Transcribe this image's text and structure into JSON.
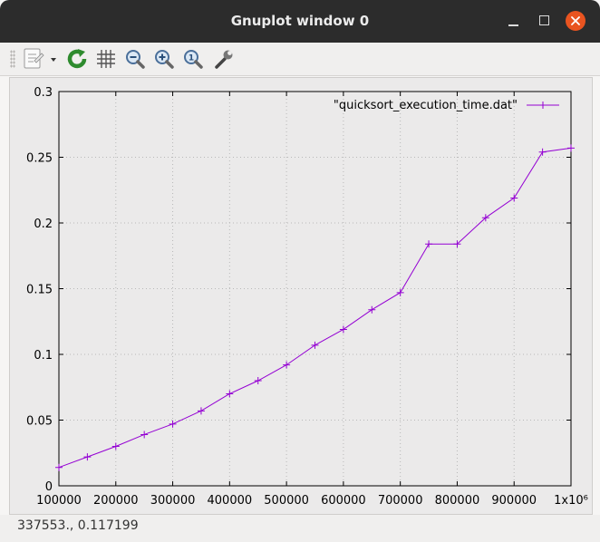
{
  "window": {
    "title": "Gnuplot window 0"
  },
  "toolbar": {
    "items": [
      {
        "name": "copy-menu",
        "icon": "clipboard-icon"
      },
      {
        "name": "replot",
        "icon": "refresh-icon"
      },
      {
        "name": "grid",
        "icon": "grid-icon"
      },
      {
        "name": "zoom-out",
        "icon": "zoom-out-icon"
      },
      {
        "name": "zoom-in",
        "icon": "zoom-in-icon"
      },
      {
        "name": "zoom-fit",
        "icon": "zoom-fit-icon"
      },
      {
        "name": "config",
        "icon": "wrench-icon"
      }
    ]
  },
  "status": {
    "coords": "337553., 0.117199"
  },
  "colors": {
    "series": "#9400d3",
    "close": "#e95420",
    "replot": "#2e8b2e"
  },
  "chart_data": {
    "type": "line",
    "title": "",
    "xlabel": "",
    "ylabel": "",
    "xlim": [
      100000,
      1000000
    ],
    "ylim": [
      0,
      0.3
    ],
    "grid": true,
    "legend_position": "top-right",
    "x_ticks": [
      "100000",
      "200000",
      "300000",
      "400000",
      "500000",
      "600000",
      "700000",
      "800000",
      "900000",
      "1x10⁶"
    ],
    "y_ticks": [
      "0",
      "0.05",
      "0.1",
      "0.15",
      "0.2",
      "0.25",
      "0.3"
    ],
    "series": [
      {
        "name": "\"quicksort_execution_time.dat\"",
        "x": [
          100000,
          150000,
          200000,
          250000,
          300000,
          350000,
          400000,
          450000,
          500000,
          550000,
          600000,
          650000,
          700000,
          750000,
          800000,
          850000,
          900000,
          950000,
          1000000
        ],
        "y": [
          0.014,
          0.022,
          0.03,
          0.039,
          0.047,
          0.057,
          0.07,
          0.08,
          0.092,
          0.107,
          0.119,
          0.134,
          0.147,
          0.184,
          0.184,
          0.204,
          0.219,
          0.254,
          0.257
        ]
      }
    ]
  }
}
